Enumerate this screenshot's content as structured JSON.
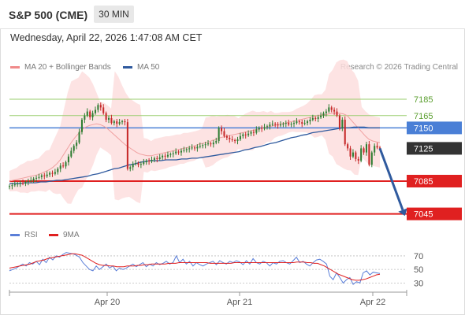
{
  "header": {
    "title": "S&P 500 (CME)",
    "timeframe": "30 MIN",
    "datetime": "Wednesday, April 22, 2026 1:47:08 AM CET"
  },
  "legend": {
    "ma20": "MA 20 + Bollinger Bands",
    "ma50": "MA 50",
    "research": "Research © 2026 Trading Central",
    "rsi": "RSI",
    "ma9": "9MA"
  },
  "colors": {
    "candle_up": "#2e7d32",
    "candle_down": "#c62828",
    "ma20": "#f0a0a0",
    "bollinger_fill": "#fddede",
    "ma50": "#2f5a9e",
    "resistance": "#9acd6e",
    "pivot": "#4a7fd6",
    "support": "#e02020",
    "last_price": "#333333",
    "arrow": "#2f5a9e",
    "rsi_line": "#5b7fd8",
    "rsi_ma": "#e02020"
  },
  "chart_data": [
    {
      "type": "candlestick",
      "title": "S&P 500 (CME)",
      "timeframe": "30 MIN",
      "x_tick_labels": [
        "Apr 20",
        "Apr 21",
        "Apr 22"
      ],
      "ylim": [
        7035,
        7210
      ],
      "levels": [
        {
          "value": 7185,
          "label": "7185",
          "kind": "resistance"
        },
        {
          "value": 7165,
          "label": "7165",
          "kind": "resistance"
        },
        {
          "value": 7150,
          "label": "7150",
          "kind": "pivot"
        },
        {
          "value": 7125,
          "label": "7125",
          "kind": "last"
        },
        {
          "value": 7085,
          "label": "7085",
          "kind": "support"
        },
        {
          "value": 7045,
          "label": "7045",
          "kind": "support"
        }
      ],
      "projection": {
        "from": 7125,
        "to": 7045
      },
      "closes": [
        7079,
        7080,
        7081,
        7082,
        7083,
        7082,
        7084,
        7085,
        7086,
        7088,
        7089,
        7090,
        7092,
        7091,
        7093,
        7095,
        7094,
        7096,
        7100,
        7104,
        7103,
        7108,
        7115,
        7122,
        7128,
        7132,
        7145,
        7160,
        7165,
        7170,
        7163,
        7168,
        7172,
        7178,
        7175,
        7168,
        7160,
        7162,
        7156,
        7158,
        7155,
        7157,
        7158,
        7157,
        7100,
        7102,
        7106,
        7107,
        7105,
        7106,
        7108,
        7110,
        7109,
        7111,
        7113,
        7112,
        7114,
        7116,
        7115,
        7117,
        7118,
        7119,
        7121,
        7120,
        7122,
        7123,
        7124,
        7125,
        7126,
        7125,
        7127,
        7128,
        7129,
        7130,
        7131,
        7130,
        7132,
        7134,
        7150,
        7146,
        7140,
        7138,
        7136,
        7135,
        7134,
        7136,
        7140,
        7142,
        7141,
        7143,
        7145,
        7144,
        7148,
        7150,
        7149,
        7151,
        7152,
        7154,
        7155,
        7154,
        7153,
        7154,
        7155,
        7156,
        7154,
        7155,
        7156,
        7158,
        7157,
        7155,
        7156,
        7158,
        7160,
        7162,
        7161,
        7163,
        7165,
        7168,
        7170,
        7175,
        7172,
        7170,
        7165,
        7150,
        7160,
        7130,
        7125,
        7115,
        7120,
        7112,
        7110,
        7125,
        7120,
        7130,
        7105,
        7120,
        7128,
        7126,
        7125
      ],
      "ma20": [
        7085,
        7086,
        7087,
        7088,
        7089,
        7090,
        7091,
        7092,
        7093,
        7095,
        7097,
        7099,
        7102,
        7106,
        7111,
        7118,
        7125,
        7132,
        7138,
        7143,
        7148,
        7151,
        7153,
        7154,
        7155,
        7154,
        7152,
        7149,
        7145,
        7141,
        7137,
        7133,
        7129,
        7126,
        7123,
        7120,
        7118,
        7117,
        7116,
        7116,
        7117,
        7118,
        7119,
        7120,
        7121,
        7122,
        7123,
        7124,
        7125,
        7126,
        7127,
        7128,
        7130,
        7131,
        7132,
        7133,
        7135,
        7136,
        7138,
        7139,
        7140,
        7141,
        7142,
        7143,
        7144,
        7145,
        7146,
        7147,
        7148,
        7149,
        7150,
        7151,
        7152,
        7153,
        7154,
        7155,
        7156,
        7157,
        7158,
        7159,
        7160,
        7161,
        7162,
        7163,
        7164,
        7165,
        7166,
        7166,
        7167,
        7168,
        7168,
        7168,
        7167,
        7165,
        7160,
        7155,
        7150,
        7145,
        7140,
        7136,
        7134,
        7133,
        7132
      ],
      "ma50": [
        7082,
        7082,
        7082,
        7083,
        7083,
        7083,
        7084,
        7084,
        7085,
        7086,
        7086,
        7087,
        7088,
        7089,
        7090,
        7091,
        7093,
        7094,
        7096,
        7098,
        7100,
        7101,
        7103,
        7105,
        7106,
        7108,
        7109,
        7110,
        7110,
        7110,
        7111,
        7111,
        7111,
        7112,
        7112,
        7113,
        7113,
        7114,
        7115,
        7116,
        7117,
        7118,
        7119,
        7120,
        7121,
        7123,
        7124,
        7126,
        7127,
        7129,
        7131,
        7132,
        7134,
        7136,
        7138,
        7139,
        7141,
        7142,
        7144,
        7145,
        7146,
        7147,
        7148,
        7149,
        7150,
        7150,
        7151,
        7151,
        7151,
        7150,
        7150,
        7150
      ]
    },
    {
      "type": "line",
      "title": "RSI",
      "ylim": [
        20,
        85
      ],
      "y_tick_labels": [
        "70",
        "50",
        "30"
      ],
      "series": [
        {
          "name": "RSI",
          "values": [
            48,
            50,
            52,
            55,
            58,
            55,
            60,
            58,
            62,
            57,
            65,
            60,
            68,
            64,
            70,
            68,
            72,
            75,
            74,
            73,
            71,
            68,
            60,
            55,
            50,
            48,
            55,
            50,
            54,
            58,
            52,
            55,
            48,
            52,
            50,
            52,
            55,
            58,
            54,
            57,
            60,
            54,
            58,
            55,
            60,
            57,
            59,
            62,
            58,
            60,
            70,
            60,
            65,
            58,
            62,
            55,
            60,
            57,
            55,
            58,
            60,
            62,
            57,
            63,
            60,
            58,
            62,
            60,
            63,
            61,
            57,
            63,
            58,
            66,
            60,
            58,
            62,
            60,
            55,
            60,
            58,
            62,
            63,
            60,
            58,
            63,
            68,
            60,
            62,
            58,
            55,
            60,
            64,
            65,
            62,
            58,
            40,
            35,
            45,
            38,
            30,
            35,
            38,
            28,
            32,
            30,
            45,
            48,
            42,
            46,
            45,
            44
          ]
        },
        {
          "name": "9MA",
          "values": [
            52,
            53,
            54,
            55,
            56,
            57,
            58,
            60,
            62,
            63,
            64,
            66,
            67,
            68,
            69,
            70,
            71,
            72,
            73,
            73,
            72,
            71,
            68,
            65,
            62,
            59,
            57,
            56,
            56,
            55,
            55,
            54,
            54,
            54,
            55,
            55,
            55,
            56,
            56,
            57,
            57,
            58,
            58,
            58,
            58,
            58,
            59,
            59,
            59,
            60,
            60,
            60,
            60,
            60,
            60,
            60,
            60,
            60,
            59,
            59,
            59,
            59,
            59,
            59,
            59,
            60,
            60,
            60,
            60,
            60,
            60,
            60,
            60,
            60,
            60,
            60,
            60,
            60,
            60,
            60,
            60,
            60,
            60,
            61,
            61,
            61,
            60,
            60,
            59,
            59,
            57,
            55,
            52,
            49,
            46,
            43,
            41,
            39,
            37,
            35,
            34,
            34,
            35,
            36,
            38,
            40,
            42,
            43
          ]
        }
      ]
    }
  ]
}
